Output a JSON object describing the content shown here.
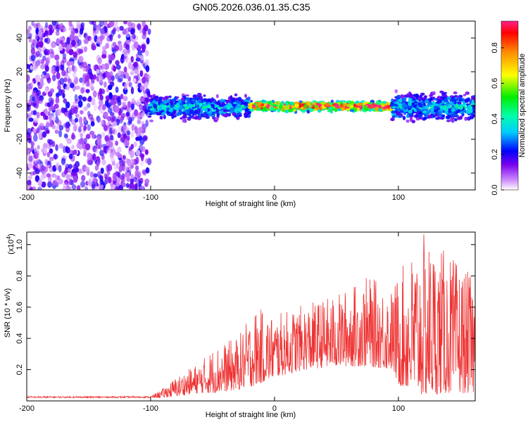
{
  "title": "GN05.2026.036.01.35.C35",
  "colors": {
    "line": "#ee3333",
    "axis": "#000000"
  },
  "chart_data": [
    {
      "type": "heatmap",
      "xlabel": "Height of straight line (km)",
      "ylabel": "Frequency (Hz)",
      "xlim": [
        -200,
        162
      ],
      "ylim": [
        -50,
        50
      ],
      "xticks": [
        -200,
        -100,
        0,
        100
      ],
      "xtick_labels": [
        "-200",
        "-100",
        "0",
        "100"
      ],
      "yticks": [
        -40,
        -20,
        0,
        20,
        40
      ],
      "ytick_labels": [
        "-40",
        "-20",
        "0",
        "20",
        "40"
      ],
      "colorbar": {
        "label": "Normalized spectral amplitude",
        "range": [
          0,
          0.95
        ],
        "ticks": [
          0.0,
          0.2,
          0.4,
          0.6,
          0.8
        ],
        "tick_labels": [
          "0.0",
          "0.2",
          "0.4",
          "0.6",
          "0.8"
        ]
      },
      "regions": [
        {
          "x": [
            -200,
            -101
          ],
          "band_hz": [
            -50,
            50
          ],
          "amplitude": 0.12,
          "description": "broadband noise"
        },
        {
          "x": [
            -101,
            -20
          ],
          "band_hz": [
            -10,
            8
          ],
          "amplitude": 0.3
        },
        {
          "x": [
            -20,
            95
          ],
          "band_hz": [
            -4,
            3
          ],
          "amplitude": 0.75
        },
        {
          "x": [
            95,
            162
          ],
          "band_hz": [
            -12,
            10
          ],
          "amplitude": 0.3
        }
      ]
    },
    {
      "type": "line",
      "xlabel": "Height of straight line (km)",
      "ylabel": "SNR (10 * v/v)",
      "scale_label_base": "(x10",
      "scale_label_exp": "4",
      "scale_label_end": ")",
      "xlim": [
        -200,
        162
      ],
      "ylim": [
        0.0,
        1.08
      ],
      "xticks": [
        -200,
        -100,
        0,
        100
      ],
      "xtick_labels": [
        "-200",
        "-100",
        "0",
        "100"
      ],
      "yticks": [
        0.2,
        0.4,
        0.6,
        0.8,
        1.0
      ],
      "ytick_labels": [
        "0.2",
        "0.4",
        "0.6",
        "0.8",
        "1.0"
      ],
      "series": [
        {
          "name": "SNR",
          "envelope": [
            {
              "x": -200,
              "baseline": 0.02,
              "peak": 0.03
            },
            {
              "x": -100,
              "baseline": 0.02,
              "peak": 0.03
            },
            {
              "x": -90,
              "baseline": 0.02,
              "peak": 0.08
            },
            {
              "x": -80,
              "baseline": 0.03,
              "peak": 0.15
            },
            {
              "x": -60,
              "baseline": 0.05,
              "peak": 0.25
            },
            {
              "x": -50,
              "baseline": 0.05,
              "peak": 0.34
            },
            {
              "x": -30,
              "baseline": 0.07,
              "peak": 0.41
            },
            {
              "x": -15,
              "baseline": 0.1,
              "peak": 0.6
            },
            {
              "x": 0,
              "baseline": 0.15,
              "peak": 0.55
            },
            {
              "x": 25,
              "baseline": 0.2,
              "peak": 0.62
            },
            {
              "x": 50,
              "baseline": 0.22,
              "peak": 0.68
            },
            {
              "x": 75,
              "baseline": 0.22,
              "peak": 0.8
            },
            {
              "x": 95,
              "baseline": 0.2,
              "peak": 0.72
            },
            {
              "x": 100,
              "baseline": 0.1,
              "peak": 0.82
            },
            {
              "x": 120,
              "baseline": 0.03,
              "peak": 1.07
            },
            {
              "x": 140,
              "baseline": 0.05,
              "peak": 0.95
            },
            {
              "x": 162,
              "baseline": 0.05,
              "peak": 0.78
            }
          ]
        }
      ]
    }
  ]
}
